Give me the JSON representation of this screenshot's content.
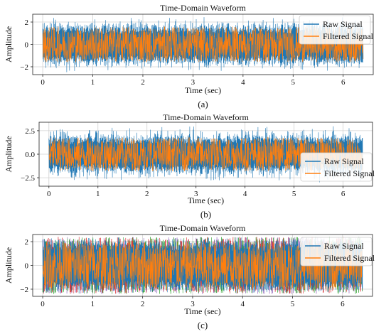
{
  "colors": {
    "raw": "#1f77b4",
    "filtered": "#ff7f0e",
    "extra1": "#9467bd",
    "extra2": "#2ca02c",
    "extra3": "#d62728"
  },
  "chart_data": [
    {
      "type": "line",
      "title": "Time-Domain Waveform",
      "xlabel": "Time (sec)",
      "ylabel": "Amplitude",
      "xlim": [
        -0.2,
        6.6
      ],
      "ylim": [
        -2.7,
        2.7
      ],
      "xticks": [
        0,
        1,
        2,
        3,
        4,
        5,
        6
      ],
      "yticks": [
        -2,
        0,
        2
      ],
      "ytick_labels": [
        "−2",
        "0",
        "2"
      ],
      "grid": true,
      "legend_position": "top-right",
      "series": [
        {
          "name": "Raw Signal",
          "x_range": [
            0,
            6.4
          ],
          "envelope": [
            -2.5,
            2.5
          ],
          "core": [
            -1.5,
            1.5
          ]
        },
        {
          "name": "Filtered Signal",
          "x_range": [
            0,
            6.4
          ],
          "envelope": [
            -1.6,
            1.6
          ]
        }
      ],
      "caption": "(a)"
    },
    {
      "type": "line",
      "title": "Time-Domain Waveform",
      "xlabel": "Time (sec)",
      "ylabel": "Amplitude",
      "xlim": [
        -0.2,
        6.6
      ],
      "ylim": [
        -3.4,
        3.4
      ],
      "xticks": [
        0,
        1,
        2,
        3,
        4,
        5,
        6
      ],
      "yticks": [
        -2.5,
        0.0,
        2.5
      ],
      "ytick_labels": [
        "−2.5",
        "0.0",
        "2.5"
      ],
      "grid": true,
      "legend_position": "bottom-right",
      "series": [
        {
          "name": "Raw Signal",
          "x_range": [
            0,
            6.4
          ],
          "envelope": [
            -3.0,
            3.0
          ],
          "core": [
            -1.6,
            1.6
          ]
        },
        {
          "name": "Filtered Signal",
          "x_range": [
            0,
            6.4
          ],
          "envelope": [
            -1.8,
            1.8
          ]
        }
      ],
      "caption": "(b)"
    },
    {
      "type": "line",
      "title": "Time-Domain Waveform",
      "xlabel": "Time (sec)",
      "ylabel": "Amplitude",
      "xlim": [
        -0.2,
        6.6
      ],
      "ylim": [
        -2.6,
        2.6
      ],
      "xticks": [
        0,
        1,
        2,
        3,
        4,
        5,
        6
      ],
      "yticks": [
        -2,
        0,
        2
      ],
      "ytick_labels": [
        "−2",
        "0",
        "2"
      ],
      "grid": true,
      "legend_position": "top-right",
      "series": [
        {
          "name": "Raw Signal",
          "x_range": [
            0,
            6.4
          ],
          "envelope": [
            -2.4,
            2.4
          ],
          "core": [
            -2.0,
            2.0
          ]
        },
        {
          "name": "Filtered Signal",
          "x_range": [
            0,
            6.4
          ],
          "envelope": [
            -2.0,
            2.0
          ]
        }
      ],
      "caption": "(c)"
    }
  ]
}
